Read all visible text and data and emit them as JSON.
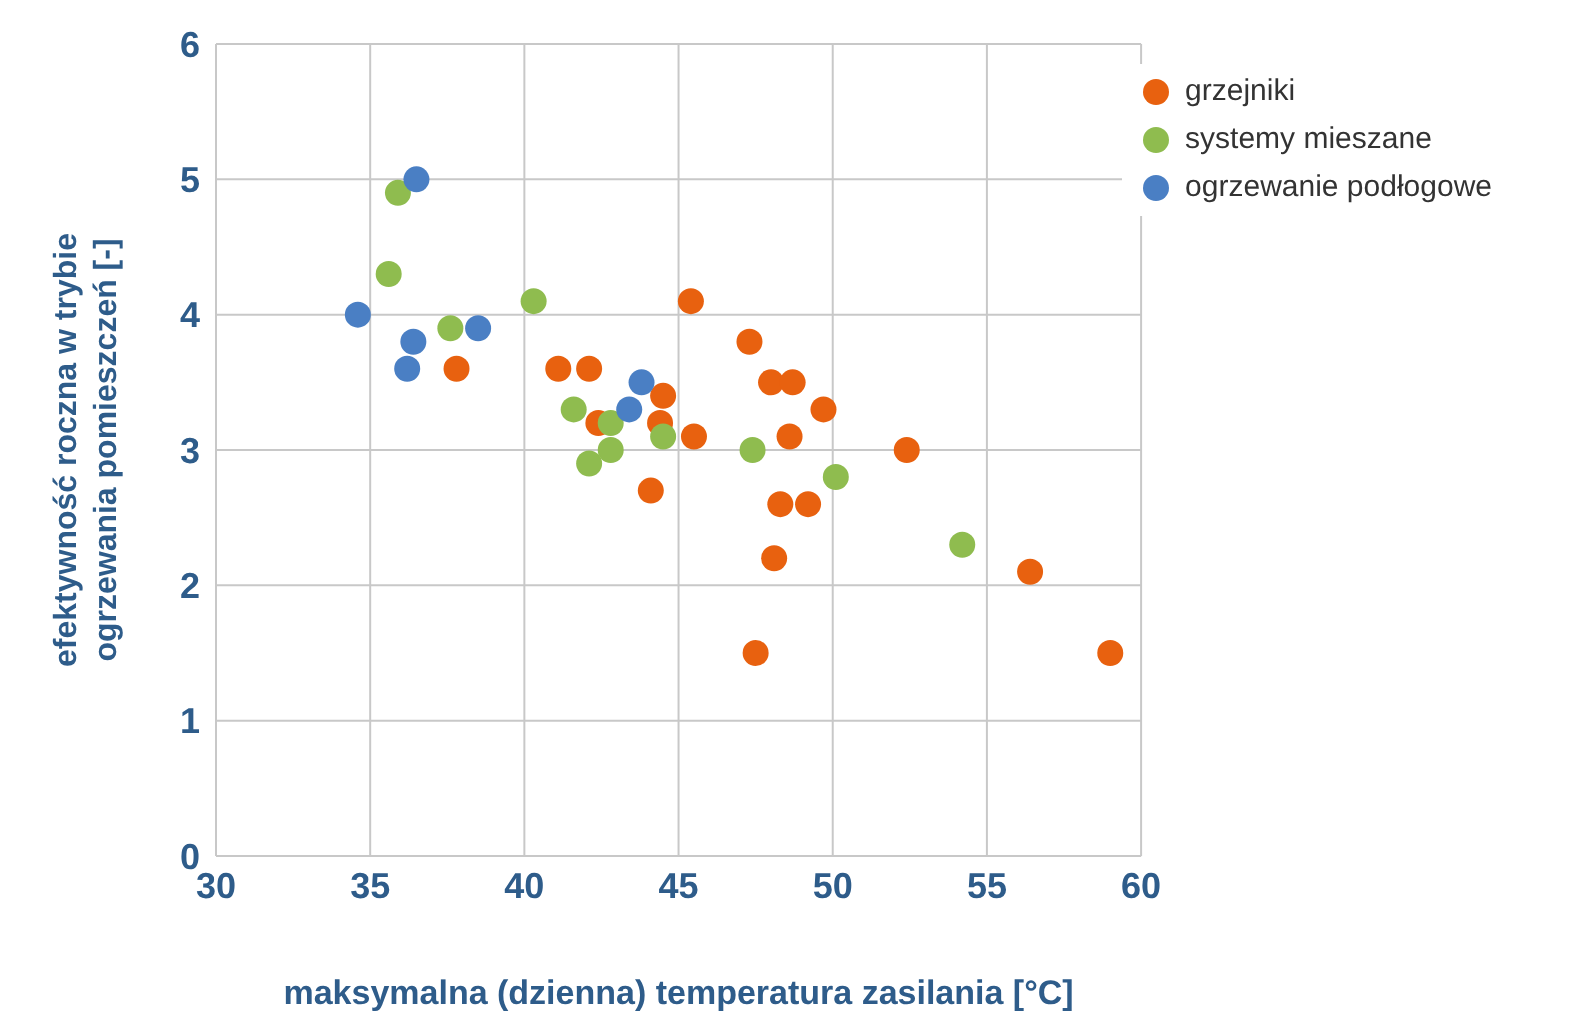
{
  "chart_data": {
    "type": "scatter",
    "xlabel": "maksymalna (dzienna) temperatura zasilania [°C]",
    "ylabel": "efektywność roczna w trybie\nogrzewania pomieszczeń [-]",
    "xlim": [
      30,
      60
    ],
    "xticks": [
      30,
      35,
      40,
      45,
      50,
      55,
      60
    ],
    "ylim": [
      0,
      6
    ],
    "yticks": [
      0,
      1,
      2,
      3,
      4,
      5,
      6
    ],
    "grid": true,
    "legend": "top right",
    "marker": "circle",
    "series": [
      {
        "name": "grzejniki",
        "color": "#e8610f",
        "x": [
          37.8,
          41.1,
          42.1,
          42.4,
          44.1,
          44.5,
          44.4,
          45.4,
          45.5,
          47.3,
          48.0,
          48.7,
          48.6,
          49.7,
          47.5,
          48.1,
          48.3,
          49.2,
          52.4,
          56.4,
          59.0
        ],
        "values": [
          3.6,
          3.6,
          3.6,
          3.2,
          2.7,
          3.4,
          3.2,
          4.1,
          3.1,
          3.8,
          3.5,
          3.5,
          3.1,
          3.3,
          1.5,
          2.2,
          2.6,
          2.6,
          3.0,
          2.1,
          1.5
        ]
      },
      {
        "name": "systemy mieszane",
        "color": "#8fbc4f",
        "x": [
          35.9,
          35.6,
          37.6,
          40.3,
          41.6,
          42.1,
          42.8,
          42.8,
          44.5,
          47.4,
          50.1,
          54.2
        ],
        "values": [
          4.9,
          4.3,
          3.9,
          4.1,
          3.3,
          2.9,
          3.2,
          3.0,
          3.1,
          3.0,
          2.8,
          2.3
        ]
      },
      {
        "name": "ogrzewanie podłogowe",
        "color": "#4a7fc4",
        "x": [
          34.6,
          36.5,
          36.4,
          36.2,
          38.5,
          43.4,
          43.8
        ],
        "values": [
          4.0,
          5.0,
          3.8,
          3.6,
          3.9,
          3.3,
          3.5
        ]
      }
    ]
  }
}
